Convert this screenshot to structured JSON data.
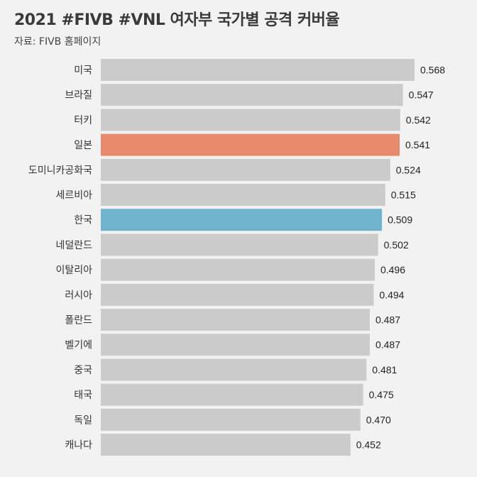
{
  "title": "2021 #FIVB #VNL 여자부 국가별 공격 커버율",
  "subtitle": "자료: FIVB 홈페이지",
  "colors": {
    "background": "#f2f2f2",
    "default_bar": "#cbcbcb",
    "japan_bar": "#e8896c",
    "korea_bar": "#6fb3cc"
  },
  "chart_data": {
    "type": "bar",
    "orientation": "horizontal",
    "title": "2021 #FIVB #VNL 여자부 국가별 공격 커버율",
    "subtitle": "자료: FIVB 홈페이지",
    "xlabel": "",
    "ylabel": "",
    "xlim": [
      0,
      0.568
    ],
    "grid": false,
    "legend": "none",
    "categories": [
      "미국",
      "브라질",
      "터키",
      "일본",
      "도미니카공화국",
      "세르비아",
      "한국",
      "네덜란드",
      "이탈리아",
      "러시아",
      "폴란드",
      "벨기에",
      "중국",
      "태국",
      "독일",
      "캐나다"
    ],
    "values": [
      0.568,
      0.547,
      0.542,
      0.541,
      0.524,
      0.515,
      0.509,
      0.502,
      0.496,
      0.494,
      0.487,
      0.487,
      0.481,
      0.475,
      0.47,
      0.452
    ],
    "value_labels": [
      "0.568",
      "0.547",
      "0.542",
      "0.541",
      "0.524",
      "0.515",
      "0.509",
      "0.502",
      "0.496",
      "0.494",
      "0.487",
      "0.487",
      "0.481",
      "0.475",
      "0.470",
      "0.452"
    ],
    "highlight_colors": {
      "일본": "#e8896c",
      "한국": "#6fb3cc"
    }
  }
}
